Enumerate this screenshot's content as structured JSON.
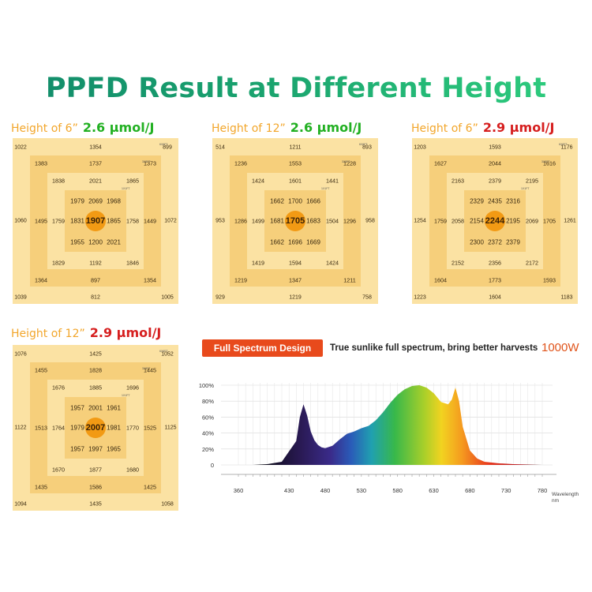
{
  "title": "PPFD Result at Different Height",
  "grids": [
    {
      "label": "Height of 6”",
      "efficiency": "2.6 μmol/J",
      "eff_color": "green",
      "corners": [
        "1022",
        "1354",
        "899",
        "1060",
        "1072",
        "1039",
        "812",
        "1005"
      ],
      "ring2": [
        "1383",
        "1737",
        "1373",
        "1495",
        "1449",
        "1364",
        "897",
        "1354"
      ],
      "ring3": [
        "1838",
        "2021",
        "1865",
        "1759",
        "1758",
        "1829",
        "1192",
        "1846"
      ],
      "ring4": [
        "1979",
        "2069",
        "1968",
        "1831",
        "1865",
        "1955",
        "1200",
        "2021"
      ],
      "center": "1907",
      "dist": [
        "6X6FT",
        "3X3FT",
        "1X1FT"
      ]
    },
    {
      "label": "Height of 12”",
      "efficiency": "2.6 μmol/J",
      "eff_color": "green",
      "corners": [
        "514",
        "1211",
        "893",
        "953",
        "958",
        "929",
        "1219",
        "758"
      ],
      "ring2": [
        "1236",
        "1553",
        "1228",
        "1286",
        "1296",
        "1219",
        "1347",
        "1211"
      ],
      "ring3": [
        "1424",
        "1601",
        "1441",
        "1499",
        "1504",
        "1419",
        "1594",
        "1424"
      ],
      "ring4": [
        "1662",
        "1700",
        "1666",
        "1681",
        "1683",
        "1662",
        "1696",
        "1669"
      ],
      "center": "1705",
      "dist": [
        "6X6FT",
        "3X3FT",
        "1X1FT"
      ]
    },
    {
      "label": "Height of 6”",
      "efficiency": "2.9 μmol/J",
      "eff_color": "red",
      "corners": [
        "1203",
        "1593",
        "1176",
        "1254",
        "1261",
        "1223",
        "1604",
        "1183"
      ],
      "ring2": [
        "1627",
        "2044",
        "1616",
        "1759",
        "1705",
        "1604",
        "1773",
        "1593"
      ],
      "ring3": [
        "2163",
        "2379",
        "2195",
        "2058",
        "2069",
        "2152",
        "2356",
        "2172"
      ],
      "ring4": [
        "2329",
        "2435",
        "2316",
        "2154",
        "2195",
        "2300",
        "2372",
        "2379"
      ],
      "center": "2244",
      "dist": [
        "6X6FT",
        "3X3FT",
        "1X1FT"
      ]
    },
    {
      "label": "Height of 12”",
      "efficiency": "2.9 μmol/J",
      "eff_color": "red",
      "corners": [
        "1076",
        "1425",
        "1052",
        "1122",
        "1125",
        "1094",
        "1435",
        "1058"
      ],
      "ring2": [
        "1455",
        "1828",
        "1445",
        "1513",
        "1525",
        "1435",
        "1586",
        "1425"
      ],
      "ring3": [
        "1676",
        "1885",
        "1696",
        "1764",
        "1770",
        "1670",
        "1877",
        "1680"
      ],
      "ring4": [
        "1957",
        "2001",
        "1961",
        "1979",
        "1981",
        "1957",
        "1997",
        "1965"
      ],
      "center": "2007",
      "dist": [
        "6X6FT",
        "3X3FT",
        "1X1FT"
      ]
    }
  ],
  "spectrum": {
    "badge": "Full Spectrum Design",
    "tagline": "True sunlike full spectrum, bring better harvests",
    "watt": "1000W",
    "y_ticks": [
      "100%",
      "80%",
      "60%",
      "40%",
      "20%",
      "0"
    ],
    "x_ticks": [
      "360",
      "430",
      "480",
      "530",
      "580",
      "630",
      "680",
      "730",
      "780"
    ],
    "x_label_1": "Wavelength",
    "x_label_2": "nm"
  },
  "chart_data": {
    "type": "area",
    "title": "",
    "xlabel": "Wavelength nm",
    "ylabel": "",
    "xlim": [
      350,
      790
    ],
    "ylim": [
      0,
      100
    ],
    "x": [
      380,
      400,
      420,
      440,
      445,
      450,
      455,
      460,
      465,
      470,
      475,
      480,
      490,
      500,
      510,
      520,
      530,
      540,
      550,
      560,
      570,
      580,
      590,
      600,
      610,
      620,
      630,
      640,
      650,
      655,
      660,
      665,
      670,
      680,
      690,
      700,
      720,
      740,
      760,
      780
    ],
    "y": [
      0,
      1,
      4,
      30,
      60,
      76,
      62,
      42,
      31,
      25,
      22,
      21,
      24,
      32,
      39,
      42,
      46,
      49,
      56,
      66,
      78,
      88,
      95,
      99,
      100,
      97,
      90,
      79,
      76,
      82,
      97,
      80,
      48,
      18,
      8,
      4,
      2,
      1,
      0.5,
      0
    ]
  },
  "colors": {
    "title_start": "#118a6a",
    "title_end": "#2fd07f",
    "label_orange": "#f2a62b",
    "eff_green": "#22b022",
    "eff_red": "#d61f1f",
    "badge": "#e84a1c",
    "watt": "#e0541b",
    "center_dot": "#f29a14"
  }
}
